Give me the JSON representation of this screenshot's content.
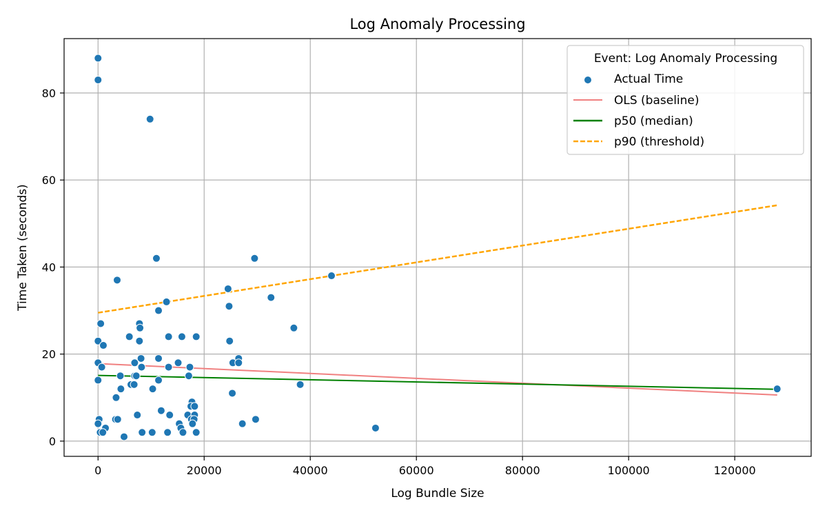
{
  "chart_data": {
    "type": "scatter",
    "title": "Log Anomaly Processing",
    "xlabel": "Log Bundle Size",
    "ylabel": "Time Taken (seconds)",
    "xlim": [
      -6400,
      134400
    ],
    "ylim": [
      -3.5,
      92.5
    ],
    "xticks": [
      0,
      20000,
      40000,
      60000,
      80000,
      100000,
      120000
    ],
    "xtick_labels": [
      "0",
      "20000",
      "40000",
      "60000",
      "80000",
      "100000",
      "120000"
    ],
    "yticks": [
      0,
      20,
      40,
      60,
      80
    ],
    "ytick_labels": [
      "0",
      "20",
      "40",
      "60",
      "80"
    ],
    "grid": true,
    "legend": {
      "title": "Event: Log Anomaly Processing",
      "placement": "top-right",
      "entries": [
        {
          "label": "Actual Time",
          "kind": "marker",
          "color": "#1f77b4"
        },
        {
          "label": "OLS (baseline)",
          "kind": "line",
          "color": "#f08080",
          "dash": "solid"
        },
        {
          "label": "p50 (median)",
          "kind": "line",
          "color": "#008000",
          "dash": "solid"
        },
        {
          "label": "p90 (threshold)",
          "kind": "line",
          "color": "#ffa500",
          "dash": "dashed"
        }
      ]
    },
    "scatter": {
      "name": "Actual Time",
      "color": "#1f77b4",
      "points": [
        [
          0,
          88
        ],
        [
          0,
          83
        ],
        [
          9800,
          74
        ],
        [
          11000,
          42
        ],
        [
          29500,
          42
        ],
        [
          3600,
          37
        ],
        [
          44000,
          38
        ],
        [
          24500,
          35
        ],
        [
          12900,
          32
        ],
        [
          24700,
          31
        ],
        [
          32600,
          33
        ],
        [
          11400,
          30
        ],
        [
          36900,
          26
        ],
        [
          500,
          27
        ],
        [
          7800,
          27
        ],
        [
          7900,
          26
        ],
        [
          0,
          23
        ],
        [
          7800,
          23
        ],
        [
          5900,
          24
        ],
        [
          13300,
          24
        ],
        [
          15800,
          24
        ],
        [
          18500,
          24
        ],
        [
          24800,
          23
        ],
        [
          1000,
          22
        ],
        [
          8100,
          19
        ],
        [
          11400,
          19
        ],
        [
          26500,
          19
        ],
        [
          0,
          18
        ],
        [
          6900,
          18
        ],
        [
          15100,
          18
        ],
        [
          25400,
          18
        ],
        [
          26500,
          18
        ],
        [
          700,
          17
        ],
        [
          8200,
          17
        ],
        [
          13300,
          17
        ],
        [
          17300,
          17
        ],
        [
          4200,
          15
        ],
        [
          6900,
          15
        ],
        [
          7200,
          15
        ],
        [
          17100,
          15
        ],
        [
          11400,
          14
        ],
        [
          0,
          14
        ],
        [
          6200,
          13
        ],
        [
          6800,
          13
        ],
        [
          38100,
          13
        ],
        [
          4300,
          12
        ],
        [
          10300,
          12
        ],
        [
          128000,
          12
        ],
        [
          25300,
          11
        ],
        [
          3400,
          10
        ],
        [
          17700,
          9
        ],
        [
          17500,
          8
        ],
        [
          18200,
          8
        ],
        [
          11900,
          7
        ],
        [
          7400,
          6
        ],
        [
          13500,
          6
        ],
        [
          16900,
          6
        ],
        [
          18200,
          6
        ],
        [
          3300,
          5
        ],
        [
          3700,
          5
        ],
        [
          17600,
          5
        ],
        [
          18100,
          5
        ],
        [
          29700,
          5
        ],
        [
          200,
          5
        ],
        [
          0,
          4
        ],
        [
          15300,
          4
        ],
        [
          17800,
          4
        ],
        [
          27200,
          4
        ],
        [
          1400,
          3
        ],
        [
          15600,
          3
        ],
        [
          52300,
          3
        ],
        [
          400,
          2
        ],
        [
          900,
          2
        ],
        [
          8300,
          2
        ],
        [
          10200,
          2
        ],
        [
          13100,
          2
        ],
        [
          16000,
          2
        ],
        [
          18500,
          2
        ],
        [
          4900,
          1
        ]
      ]
    },
    "lines": [
      {
        "name": "OLS (baseline)",
        "color": "#f08080",
        "dash": "solid",
        "x": [
          0,
          128000
        ],
        "y": [
          17.8,
          10.6
        ]
      },
      {
        "name": "p50 (median)",
        "color": "#008000",
        "dash": "solid",
        "x": [
          0,
          128000
        ],
        "y": [
          15.1,
          11.9
        ]
      },
      {
        "name": "p90 (threshold)",
        "color": "#ffa500",
        "dash": "dashed",
        "x": [
          0,
          128000
        ],
        "y": [
          29.5,
          54.2
        ]
      }
    ]
  }
}
